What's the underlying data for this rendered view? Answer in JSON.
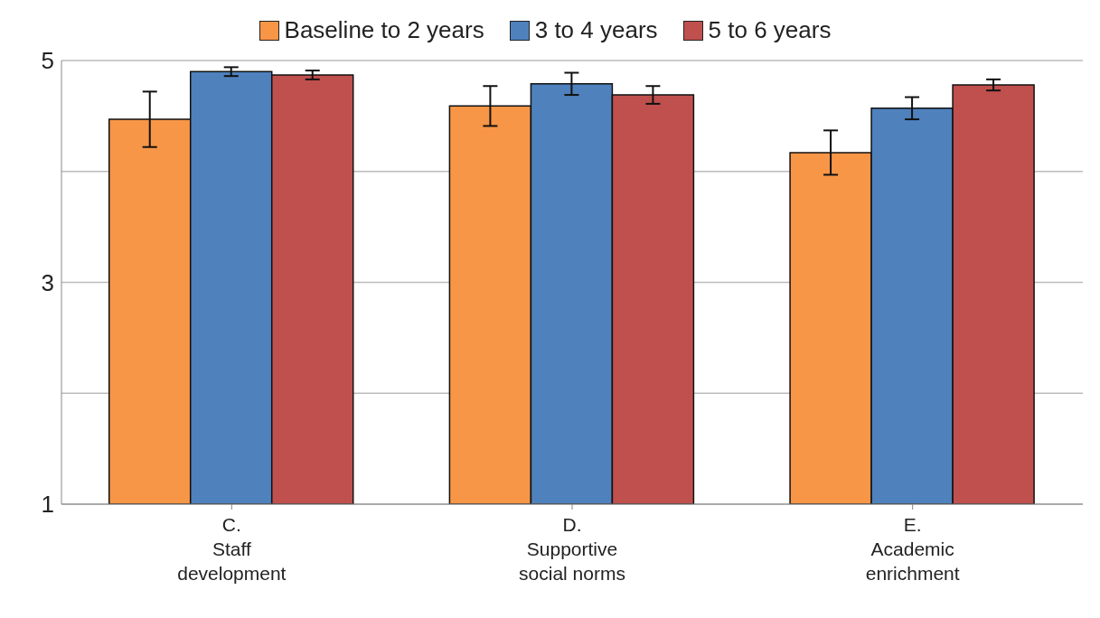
{
  "chart_data": {
    "type": "bar",
    "categories": [
      "C.\nStaff\ndevelopment",
      "D.\nSupportive\nsocial norms",
      "E.\nAcademic\nenrichment"
    ],
    "series": [
      {
        "name": "Baseline to 2 years",
        "color": "#f79646",
        "values": [
          4.47,
          4.59,
          4.17
        ],
        "errors": [
          0.25,
          0.18,
          0.2
        ]
      },
      {
        "name": "3 to 4 years",
        "color": "#4f81bd",
        "values": [
          4.9,
          4.79,
          4.57
        ],
        "errors": [
          0.04,
          0.1,
          0.1
        ]
      },
      {
        "name": "5 to 6 years",
        "color": "#c0504d",
        "values": [
          4.87,
          4.69,
          4.78
        ],
        "errors": [
          0.04,
          0.08,
          0.05
        ]
      }
    ],
    "ylim": [
      1,
      5
    ],
    "yticks": [
      1,
      {
        "value": 2,
        "label": null
      },
      3,
      {
        "value": 4,
        "label": null
      },
      5
    ],
    "grid": "y",
    "legend": "top"
  }
}
